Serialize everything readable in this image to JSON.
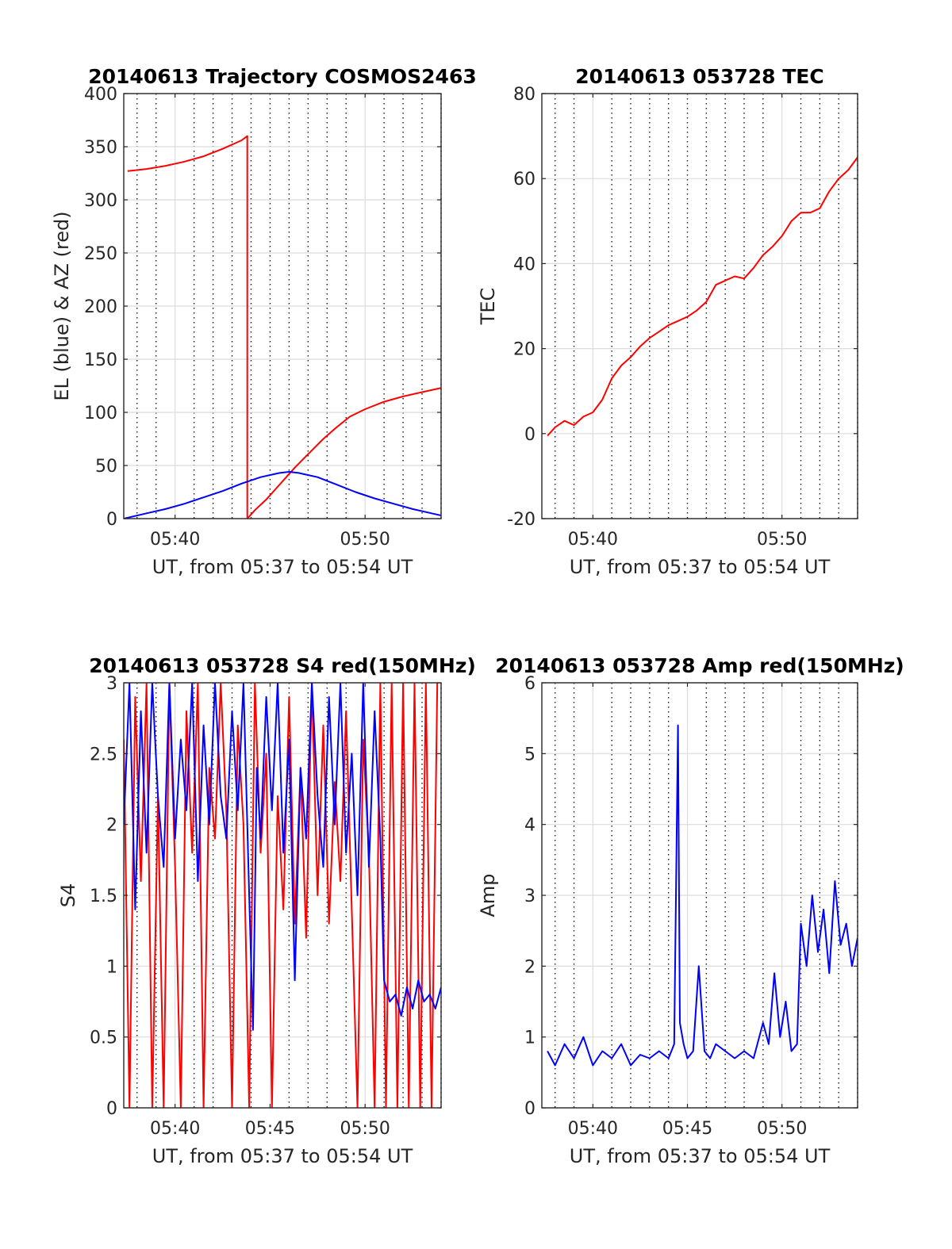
{
  "figure": {
    "background": "#ffffff"
  },
  "chart_data": [
    {
      "id": "trajectory",
      "type": "line",
      "title": "20140613 Trajectory COSMOS2463",
      "xlabel": "UT, from 05:37 to 05:54 UT",
      "ylabel": "EL (blue) & AZ (red)",
      "x_units": "minutes after 05:00 UT",
      "xlim": [
        37.3,
        54.0
      ],
      "ylim": [
        0,
        400
      ],
      "yticks": [
        0,
        50,
        100,
        150,
        200,
        250,
        300,
        350,
        400
      ],
      "ytick_labels": [
        "0",
        "50",
        "100",
        "150",
        "200",
        "250",
        "300",
        "350",
        "400"
      ],
      "xticks": [
        40,
        50
      ],
      "xtick_labels": [
        "05:40",
        "05:50"
      ],
      "grid": {
        "major_x": [
          40,
          50
        ],
        "major_y": [
          0,
          50,
          100,
          150,
          200,
          250,
          300,
          350,
          400
        ],
        "minor_x_step": 1
      },
      "series": [
        {
          "name": "AZ",
          "color": "#ff0000",
          "x": [
            37.5,
            38.5,
            39.5,
            40.5,
            41.5,
            42.5,
            43.5,
            43.8,
            43.8,
            44.2,
            44.8,
            45.3,
            45.8,
            46.3,
            46.8,
            47.3,
            47.8,
            48.5,
            49.2,
            50.0,
            51.0,
            52.0,
            53.0,
            54.0
          ],
          "y": [
            327,
            329,
            332,
            336,
            341,
            348,
            356,
            360,
            0,
            8,
            18,
            28,
            38,
            48,
            57,
            66,
            75,
            86,
            96,
            103,
            110,
            115,
            119,
            123
          ]
        },
        {
          "name": "EL",
          "color": "#0000ff",
          "x": [
            37.3,
            38.5,
            39.5,
            40.5,
            41.5,
            42.5,
            43.5,
            44.5,
            45.5,
            46.0,
            46.5,
            47.5,
            48.5,
            49.5,
            50.5,
            51.5,
            52.5,
            53.5,
            54.0
          ],
          "y": [
            0,
            5,
            9,
            14,
            20,
            26,
            33,
            39,
            43,
            44,
            43,
            39,
            32,
            25,
            19,
            14,
            9,
            5,
            3
          ]
        }
      ]
    },
    {
      "id": "tec",
      "type": "line",
      "title": "20140613 053728 TEC",
      "xlabel": "UT, from 05:37 to 05:54 UT",
      "ylabel": "TEC",
      "x_units": "minutes after 05:00 UT",
      "xlim": [
        37.3,
        54.0
      ],
      "ylim": [
        -20,
        80
      ],
      "yticks": [
        -20,
        0,
        20,
        40,
        60,
        80
      ],
      "ytick_labels": [
        "-20",
        "0",
        "20",
        "40",
        "60",
        "80"
      ],
      "xticks": [
        40,
        50
      ],
      "xtick_labels": [
        "05:40",
        "05:50"
      ],
      "grid": {
        "major_x": [
          40,
          50
        ],
        "major_y": [
          -20,
          0,
          20,
          40,
          60,
          80
        ],
        "minor_x_step": 1
      },
      "series": [
        {
          "name": "TEC",
          "color": "#ff0000",
          "x": [
            37.6,
            38.0,
            38.5,
            39.0,
            39.5,
            40.0,
            40.5,
            41.0,
            41.5,
            42.0,
            42.5,
            43.0,
            43.5,
            44.0,
            44.5,
            45.0,
            45.5,
            46.0,
            46.5,
            47.0,
            47.5,
            48.0,
            48.5,
            49.0,
            49.5,
            50.0,
            50.5,
            51.0,
            51.5,
            52.0,
            52.5,
            53.0,
            53.5,
            54.0
          ],
          "y": [
            -0.5,
            1.5,
            3,
            2,
            4,
            5,
            8,
            13,
            16,
            18,
            20.5,
            22.5,
            24,
            25.5,
            26.5,
            27.5,
            29,
            31,
            35,
            36,
            37,
            36.5,
            39,
            42,
            44,
            46.5,
            50,
            52,
            52,
            53,
            57,
            60,
            62,
            65
          ]
        }
      ]
    },
    {
      "id": "s4",
      "type": "line",
      "title": "20140613 053728 S4 red(150MHz)",
      "xlabel": "UT, from 05:37 to 05:54 UT",
      "ylabel": "S4",
      "x_units": "minutes after 05:00 UT",
      "xlim": [
        37.3,
        54.0
      ],
      "ylim": [
        0,
        3
      ],
      "yticks": [
        0,
        0.5,
        1,
        1.5,
        2,
        2.5,
        3
      ],
      "ytick_labels": [
        "0",
        "0.5",
        "1",
        "1.5",
        "2",
        "2.5",
        "3"
      ],
      "xticks": [
        40,
        45,
        50
      ],
      "xtick_labels": [
        "05:40",
        "05:45",
        "05:50"
      ],
      "grid": {
        "major_x": [
          40,
          45,
          50
        ],
        "major_y": [
          0,
          0.5,
          1,
          1.5,
          2,
          2.5,
          3
        ],
        "minor_x_step": 1
      },
      "series": [
        {
          "name": "S4 red",
          "color": "#ff0000",
          "x": [
            37.3,
            37.6,
            37.9,
            38.2,
            38.5,
            38.8,
            39.1,
            39.4,
            39.7,
            40.0,
            40.3,
            40.6,
            40.9,
            41.2,
            41.5,
            41.8,
            42.1,
            42.4,
            42.7,
            43.0,
            43.3,
            43.6,
            43.9,
            44.2,
            44.5,
            44.8,
            45.1,
            45.4,
            45.7,
            46.0,
            46.3,
            46.6,
            46.9,
            47.2,
            47.5,
            47.8,
            48.1,
            48.4,
            48.7,
            49.0,
            49.3,
            49.6,
            49.9,
            50.2,
            50.5,
            50.8,
            51.1,
            51.4,
            51.7,
            52.0,
            52.3,
            52.6,
            52.9,
            53.2,
            53.5,
            53.8
          ],
          "y": [
            2.6,
            0,
            2.9,
            1.6,
            3,
            0,
            2.2,
            0,
            3,
            1.7,
            0,
            2.8,
            1.8,
            3,
            0,
            2.4,
            1.9,
            3,
            2.1,
            0,
            2.7,
            2.0,
            0,
            3,
            1.8,
            2.5,
            0,
            2.2,
            1.4,
            2.9,
            1.3,
            2.4,
            1.2,
            3,
            1.5,
            2.7,
            1.3,
            2.3,
            1.6,
            2.8,
            1.4,
            0,
            2.6,
            1.8,
            0,
            3,
            0,
            3,
            0,
            3,
            0,
            3,
            0,
            3,
            0,
            3
          ]
        },
        {
          "name": "S4 blue",
          "color": "#0000ff",
          "x": [
            37.3,
            37.6,
            37.9,
            38.2,
            38.5,
            38.8,
            39.1,
            39.4,
            39.7,
            40.0,
            40.3,
            40.6,
            40.9,
            41.2,
            41.5,
            41.8,
            42.1,
            42.4,
            42.7,
            43.0,
            43.3,
            43.6,
            43.9,
            44.1,
            44.3,
            44.5,
            44.8,
            45.1,
            45.4,
            45.7,
            46.0,
            46.3,
            46.6,
            46.9,
            47.2,
            47.5,
            47.8,
            48.1,
            48.4,
            48.7,
            49.0,
            49.3,
            49.6,
            49.9,
            50.2,
            50.5,
            50.8,
            51.0,
            51.3,
            51.6,
            51.9,
            52.2,
            52.5,
            52.8,
            53.1,
            53.4,
            53.7,
            54.0
          ],
          "y": [
            2.0,
            3,
            1.4,
            2.8,
            1.8,
            3,
            2.2,
            1.7,
            3,
            1.9,
            2.6,
            2.1,
            3,
            1.6,
            2.7,
            2.0,
            3,
            2.2,
            1.9,
            2.8,
            2.1,
            3,
            1.5,
            0.55,
            2.4,
            1.9,
            2.9,
            2.1,
            3,
            1.8,
            2.6,
            0.9,
            2.4,
            1.9,
            3,
            2.2,
            1.7,
            2.9,
            2.0,
            3,
            1.8,
            2.5,
            1.5,
            3,
            1.7,
            2.8,
            1.9,
            0.9,
            0.75,
            0.8,
            0.65,
            0.85,
            0.7,
            0.9,
            0.75,
            0.8,
            0.7,
            0.85
          ]
        }
      ]
    },
    {
      "id": "amp",
      "type": "line",
      "title": "20140613 053728 Amp red(150MHz)",
      "xlabel": "UT, from 05:37 to 05:54 UT",
      "ylabel": "Amp",
      "x_units": "minutes after 05:00 UT",
      "xlim": [
        37.3,
        54.0
      ],
      "ylim": [
        0,
        6
      ],
      "yticks": [
        0,
        1,
        2,
        3,
        4,
        5,
        6
      ],
      "ytick_labels": [
        "0",
        "1",
        "2",
        "3",
        "4",
        "5",
        "6"
      ],
      "xticks": [
        40,
        45,
        50
      ],
      "xtick_labels": [
        "05:40",
        "05:45",
        "05:50"
      ],
      "grid": {
        "major_x": [
          40,
          45,
          50
        ],
        "major_y": [
          0,
          1,
          2,
          3,
          4,
          5,
          6
        ],
        "minor_x_step": 1
      },
      "series": [
        {
          "name": "Amp",
          "color": "#0000ff",
          "x": [
            37.6,
            38.0,
            38.5,
            39.0,
            39.5,
            40.0,
            40.5,
            41.0,
            41.5,
            42.0,
            42.5,
            43.0,
            43.5,
            44.0,
            44.3,
            44.5,
            44.6,
            44.8,
            45.0,
            45.3,
            45.6,
            45.9,
            46.2,
            46.5,
            47.0,
            47.5,
            48.0,
            48.5,
            49.0,
            49.3,
            49.6,
            49.9,
            50.2,
            50.5,
            50.8,
            51.0,
            51.3,
            51.6,
            51.9,
            52.2,
            52.5,
            52.8,
            53.1,
            53.4,
            53.7,
            54.0
          ],
          "y": [
            0.8,
            0.6,
            0.9,
            0.7,
            1.0,
            0.6,
            0.8,
            0.7,
            0.9,
            0.6,
            0.75,
            0.7,
            0.8,
            0.7,
            0.9,
            5.4,
            1.2,
            0.9,
            0.7,
            0.8,
            2.0,
            0.8,
            0.7,
            0.9,
            0.8,
            0.7,
            0.8,
            0.7,
            1.2,
            0.9,
            1.9,
            1.0,
            1.5,
            0.8,
            0.9,
            2.6,
            2.0,
            3.0,
            2.2,
            2.8,
            1.9,
            3.2,
            2.3,
            2.6,
            2.0,
            2.4
          ]
        }
      ]
    }
  ]
}
